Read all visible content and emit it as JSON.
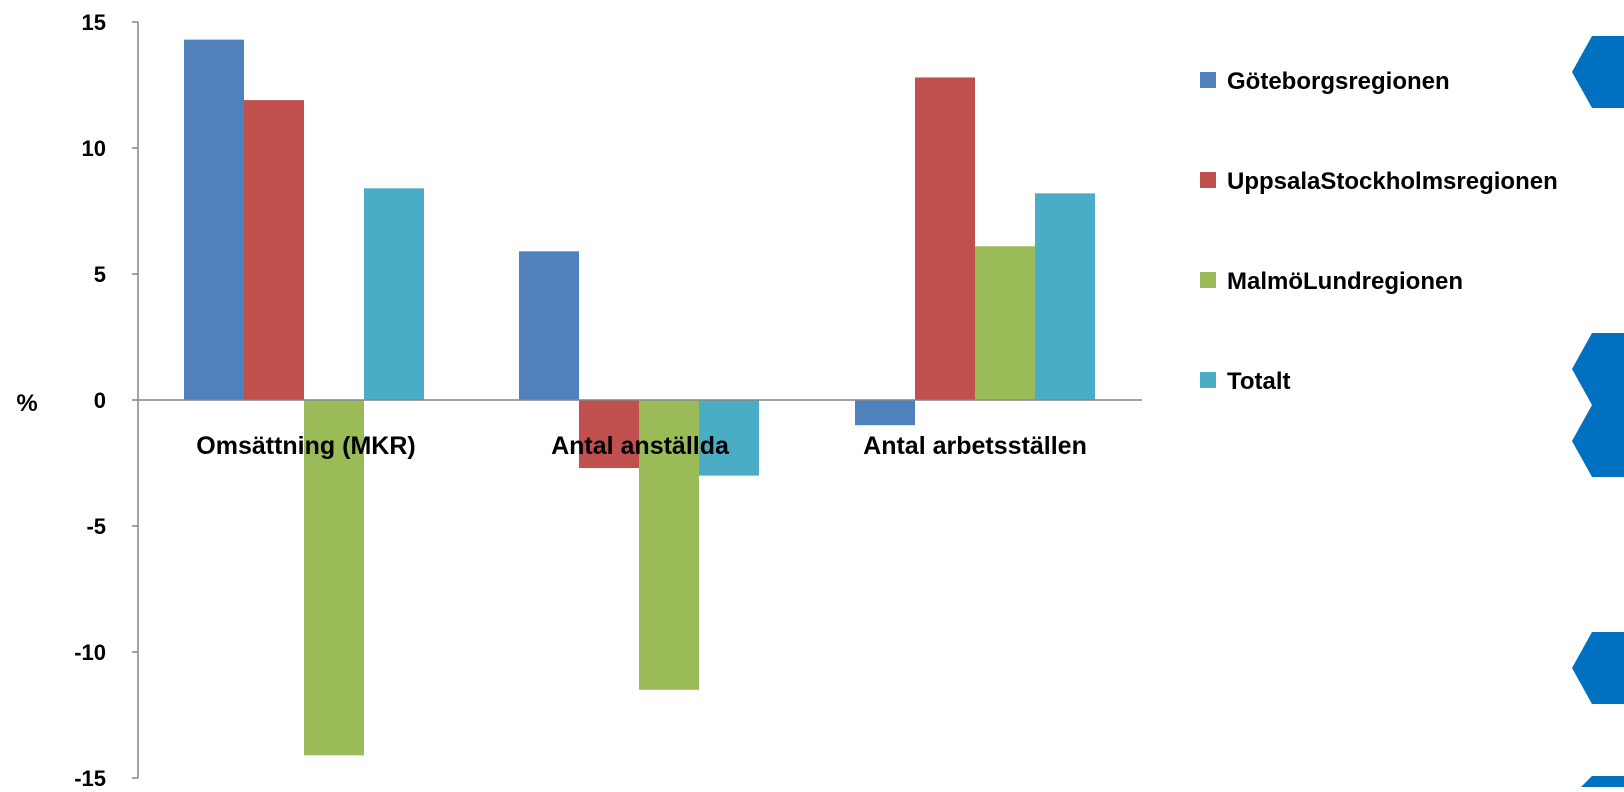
{
  "chart_data": {
    "type": "bar",
    "title": "",
    "xlabel": "",
    "ylabel": "%",
    "ylim": [
      -15,
      15
    ],
    "yticks": [
      "15",
      "10",
      "5",
      "0",
      "-5",
      "-10",
      "-15"
    ],
    "categories": [
      "Omsättning (MKR)",
      "Antal anställda",
      "Antal arbetsställen"
    ],
    "series": [
      {
        "name": "Göteborgsregionen",
        "color": "#4F81BD",
        "values": [
          14.3,
          5.9,
          -1.0
        ]
      },
      {
        "name": "UppsalaStockholmsregionen",
        "color": "#C0504D",
        "values": [
          11.9,
          -2.7,
          12.8
        ]
      },
      {
        "name": "MalmöLundregionen",
        "color": "#9BBB59",
        "values": [
          -14.1,
          -11.5,
          6.1
        ]
      },
      {
        "name": "Totalt",
        "color": "#4BACC6",
        "values": [
          8.4,
          -3.0,
          8.2
        ]
      }
    ],
    "grid": false,
    "legend_position": "right",
    "decor_color": "#0070C0"
  }
}
